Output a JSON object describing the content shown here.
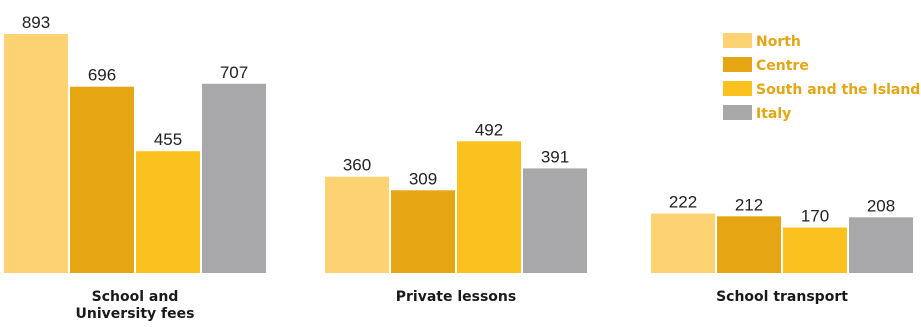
{
  "chart_data": {
    "type": "bar",
    "categories": [
      [
        "School and",
        "University fees"
      ],
      [
        "Private lessons"
      ],
      [
        "School transport"
      ]
    ],
    "series": [
      {
        "name": "North",
        "color": "#FDD273",
        "values": [
          893,
          360,
          222
        ]
      },
      {
        "name": "Centre",
        "color": "#E6A512",
        "values": [
          696,
          309,
          212
        ]
      },
      {
        "name": "South and the Islands",
        "color": "#FBC21F",
        "values": [
          455,
          492,
          170
        ]
      },
      {
        "name": "Italy",
        "color": "#A8A8AA",
        "values": [
          707,
          391,
          208
        ]
      }
    ],
    "legend_text_color": "#E6A512",
    "legend_position": "top-right",
    "ylim": [
      0,
      893
    ],
    "grid": false
  }
}
